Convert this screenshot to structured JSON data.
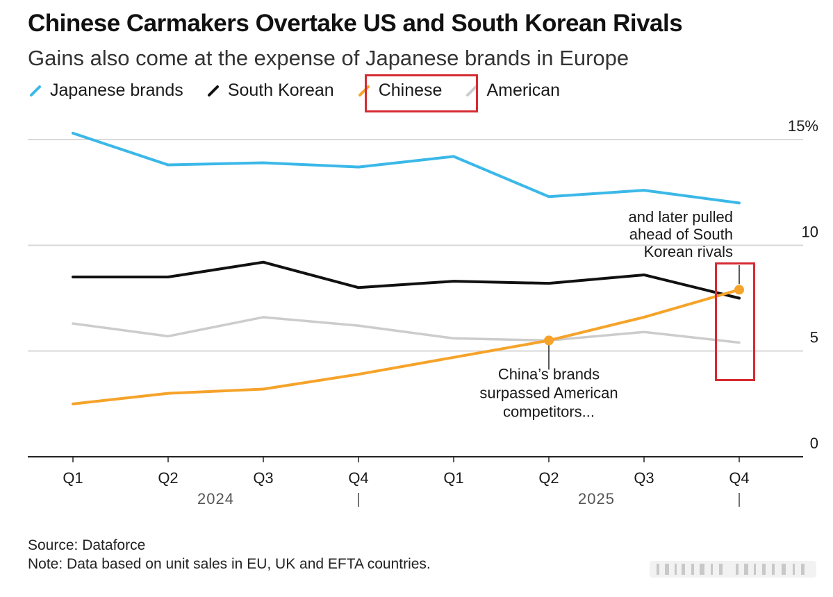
{
  "title": "Chinese Carmakers Overtake US and South Korean Rivals",
  "subtitle": "Gains also come at the expense of Japanese brands in Europe",
  "legend": [
    {
      "label": "Japanese brands",
      "color": "#3bb8e8"
    },
    {
      "label": "South Korean",
      "color": "#111111"
    },
    {
      "label": "Chinese",
      "color": "#f5a32a"
    },
    {
      "label": "American",
      "color": "#cccccc"
    }
  ],
  "source": "Source: Dataforce",
  "note": "Note: Data based on unit sales in EU, UK and EFTA countries.",
  "chart_data": {
    "type": "line",
    "categories": [
      "Q1",
      "Q2",
      "Q3",
      "Q4",
      "Q1",
      "Q2",
      "Q3",
      "Q4"
    ],
    "year_labels": [
      "2024",
      "2025"
    ],
    "ylim": [
      0,
      15
    ],
    "yticks": [
      0,
      5,
      10,
      15
    ],
    "ytick_labels": [
      "0",
      "5",
      "10",
      "15%"
    ],
    "series": [
      {
        "name": "Japanese brands",
        "color": "#3bb8e8",
        "values": [
          15.3,
          13.8,
          13.9,
          13.7,
          14.2,
          12.3,
          12.6,
          12.0
        ]
      },
      {
        "name": "South Korean",
        "color": "#111111",
        "values": [
          8.5,
          8.5,
          9.2,
          8.0,
          8.3,
          8.2,
          8.6,
          7.5
        ]
      },
      {
        "name": "American",
        "color": "#cccccc",
        "values": [
          6.3,
          5.7,
          6.6,
          6.2,
          5.6,
          5.5,
          5.9,
          5.4
        ]
      },
      {
        "name": "Chinese",
        "color": "#f5a32a",
        "values": [
          2.5,
          3.0,
          3.2,
          3.9,
          4.7,
          5.5,
          6.6,
          7.9
        ]
      }
    ],
    "annotations": [
      {
        "text_lines": [
          "China’s brands",
          "surpassed American",
          "competitors..."
        ],
        "series": "Chinese",
        "index": 5
      },
      {
        "text_lines": [
          "and later pulled",
          "ahead of South",
          "Korean rivals"
        ],
        "series": "Chinese",
        "index": 7
      }
    ]
  }
}
